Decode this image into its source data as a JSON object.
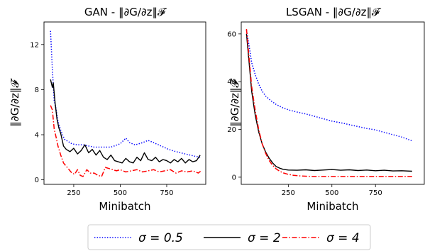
{
  "chart_data": [
    {
      "type": "line",
      "title": "GAN - ‖∂G/∂z‖𝓕",
      "xlabel": "Minibatch",
      "ylabel": "‖∂G/∂z‖𝓕",
      "xticks": [
        250,
        500,
        750
      ],
      "yticks": [
        0,
        4,
        8,
        12
      ],
      "xlim": [
        90,
        960
      ],
      "ylim": [
        -0.4,
        14
      ],
      "grid": false,
      "series": [
        {
          "name": "σ = 0.5",
          "color": "#0000ff",
          "style": "dotted",
          "x": [
            125,
            135,
            145,
            155,
            165,
            180,
            200,
            220,
            240,
            270,
            300,
            330,
            360,
            400,
            450,
            500,
            530,
            550,
            580,
            620,
            650,
            680,
            720,
            760,
            800,
            850,
            900,
            930
          ],
          "y": [
            13.2,
            9.8,
            7.0,
            6.3,
            5.2,
            4.4,
            3.6,
            3.4,
            3.2,
            3.1,
            3.1,
            3.0,
            2.9,
            2.9,
            2.9,
            3.2,
            3.7,
            3.3,
            3.1,
            3.3,
            3.5,
            3.3,
            3.0,
            2.7,
            2.5,
            2.3,
            2.1,
            2.0
          ]
        },
        {
          "name": "σ = 2",
          "color": "#000000",
          "style": "solid",
          "x": [
            125,
            135,
            140,
            150,
            160,
            170,
            180,
            195,
            210,
            230,
            250,
            270,
            290,
            310,
            330,
            350,
            370,
            390,
            410,
            430,
            450,
            470,
            490,
            510,
            530,
            550,
            570,
            590,
            610,
            630,
            650,
            670,
            690,
            710,
            730,
            750,
            770,
            790,
            810,
            830,
            850,
            870,
            890,
            910,
            930
          ],
          "y": [
            8.9,
            8.2,
            8.6,
            6.8,
            5.4,
            4.6,
            4.1,
            3.0,
            2.7,
            2.5,
            2.8,
            2.3,
            2.6,
            3.1,
            2.4,
            2.7,
            2.2,
            2.6,
            2.0,
            1.8,
            2.2,
            1.7,
            1.6,
            1.5,
            1.9,
            1.6,
            1.5,
            2.0,
            1.7,
            2.4,
            1.8,
            1.7,
            2.0,
            1.6,
            1.8,
            1.7,
            1.5,
            1.8,
            1.6,
            1.9,
            1.5,
            1.8,
            1.6,
            1.7,
            2.2
          ]
        },
        {
          "name": "σ = 4",
          "color": "#ff0000",
          "style": "dashdot",
          "x": [
            125,
            135,
            145,
            155,
            165,
            180,
            195,
            210,
            225,
            240,
            255,
            270,
            285,
            300,
            320,
            340,
            360,
            380,
            400,
            420,
            440,
            460,
            480,
            500,
            530,
            560,
            590,
            620,
            650,
            680,
            710,
            740,
            770,
            800,
            830,
            860,
            890,
            920,
            935
          ],
          "y": [
            6.6,
            6.2,
            4.5,
            3.8,
            3.0,
            2.2,
            1.5,
            1.2,
            0.9,
            0.6,
            0.5,
            0.9,
            0.4,
            0.3,
            0.9,
            0.6,
            0.6,
            0.4,
            0.3,
            1.1,
            1.0,
            0.9,
            0.8,
            0.9,
            0.7,
            0.8,
            0.9,
            0.7,
            0.8,
            0.9,
            0.7,
            0.8,
            0.9,
            0.6,
            0.8,
            0.7,
            0.8,
            0.6,
            0.8
          ]
        }
      ]
    },
    {
      "type": "line",
      "title": "LSGAN - ‖∂G/∂z‖𝓕",
      "xlabel": "Minibatch",
      "ylabel": "‖∂G/∂z‖𝓕",
      "xticks": [
        250,
        500,
        750
      ],
      "yticks": [
        0,
        20,
        40,
        60
      ],
      "xlim": [
        -20,
        1030
      ],
      "ylim": [
        -3,
        65
      ],
      "grid": false,
      "series": [
        {
          "name": "σ = 0.5",
          "color": "#0000ff",
          "style": "dotted",
          "x": [
            10,
            25,
            40,
            60,
            80,
            100,
            120,
            150,
            180,
            220,
            260,
            300,
            350,
            400,
            450,
            500,
            550,
            600,
            650,
            700,
            750,
            800,
            850,
            900,
            960
          ],
          "y": [
            61.5,
            55,
            48,
            43,
            39,
            36,
            34,
            32,
            30.5,
            29,
            28,
            27.3,
            26.5,
            25.5,
            24.5,
            23.5,
            22.8,
            22,
            21.2,
            20.4,
            19.8,
            18.8,
            17.8,
            16.8,
            15.2
          ]
        },
        {
          "name": "σ = 2",
          "color": "#000000",
          "style": "solid",
          "x": [
            10,
            25,
            40,
            60,
            80,
            100,
            120,
            140,
            160,
            180,
            200,
            220,
            250,
            300,
            350,
            400,
            450,
            500,
            550,
            600,
            650,
            700,
            750,
            800,
            850,
            900,
            960
          ],
          "y": [
            60,
            48,
            36,
            26,
            19,
            14,
            10.5,
            8,
            6,
            4.5,
            3.8,
            3.3,
            3.0,
            2.9,
            3.1,
            2.8,
            3.0,
            3.2,
            2.9,
            3.1,
            2.8,
            3.0,
            2.7,
            2.9,
            2.6,
            2.7,
            2.5
          ]
        },
        {
          "name": "σ = 4",
          "color": "#ff0000",
          "style": "dashdot",
          "x": [
            10,
            25,
            40,
            60,
            80,
            100,
            120,
            140,
            160,
            180,
            200,
            220,
            250,
            280,
            320,
            360,
            400,
            450,
            500,
            600,
            700,
            800,
            900,
            960
          ],
          "y": [
            62,
            50,
            38,
            28,
            20,
            14,
            10,
            7,
            5,
            3.5,
            2.5,
            1.8,
            1.2,
            0.8,
            0.5,
            0.4,
            0.3,
            0.3,
            0.3,
            0.3,
            0.3,
            0.3,
            0.3,
            0.3
          ]
        }
      ]
    }
  ],
  "legend": {
    "position": "bottom-center",
    "entries": [
      {
        "label": "σ = 0.5",
        "color": "#0000ff",
        "style": "dotted"
      },
      {
        "label": "σ = 2",
        "color": "#000000",
        "style": "solid"
      },
      {
        "label": "σ = 4",
        "color": "#ff0000",
        "style": "dashdot"
      }
    ]
  }
}
